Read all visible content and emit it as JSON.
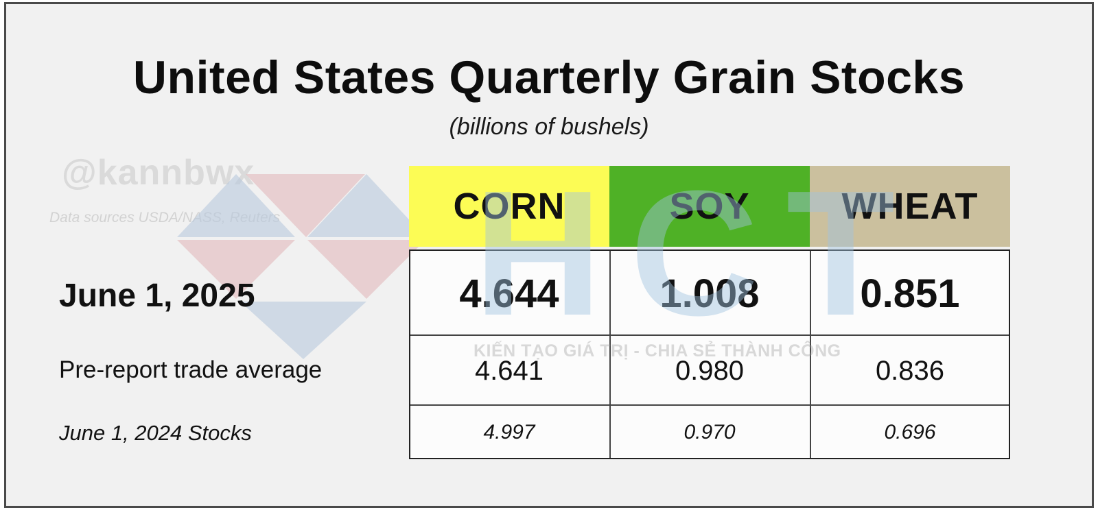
{
  "title": "United States Quarterly Grain Stocks",
  "subtitle": "(billions of bushels)",
  "watermark": {
    "handle": "@kannbwx",
    "sources": "Data sources  USDA/NASS, Reuters",
    "logo_letters": "HCT",
    "tagline": "KIẾN TẠO GIÁ TRỊ - CHIA SẺ THÀNH CÔNG"
  },
  "colors": {
    "corn": "#fcfc55",
    "soy": "#4fb126",
    "wheat": "#cbc09e",
    "frame": "#4a4a4a",
    "background": "#f1f1f1"
  },
  "chart_data": {
    "type": "table",
    "title": "United States Quarterly Grain Stocks",
    "subtitle": "(billions of bushels)",
    "columns": [
      "CORN",
      "SOY",
      "WHEAT"
    ],
    "rows": [
      {
        "label": "June 1, 2025",
        "values": [
          "4.644",
          "1.008",
          "0.851"
        ]
      },
      {
        "label": "Pre-report trade average",
        "values": [
          "4.641",
          "0.980",
          "0.836"
        ]
      },
      {
        "label": "June 1, 2024 Stocks",
        "values": [
          "4.997",
          "0.970",
          "0.696"
        ]
      }
    ]
  }
}
